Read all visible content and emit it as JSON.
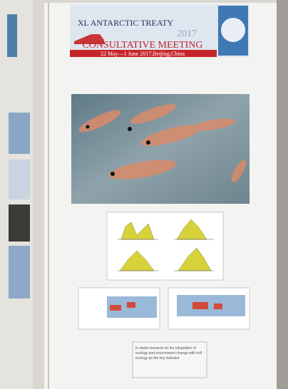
{
  "header": {
    "line1": "XL ANTARCTIC TREATY",
    "year": "2017",
    "line2": "CONSULTATIVE MEETING",
    "dates": "22 May—1 June 2017,Beijing,China"
  },
  "caption": "In-depth research on the integration of ecology and environment change with krill ecology as the key indicator"
}
